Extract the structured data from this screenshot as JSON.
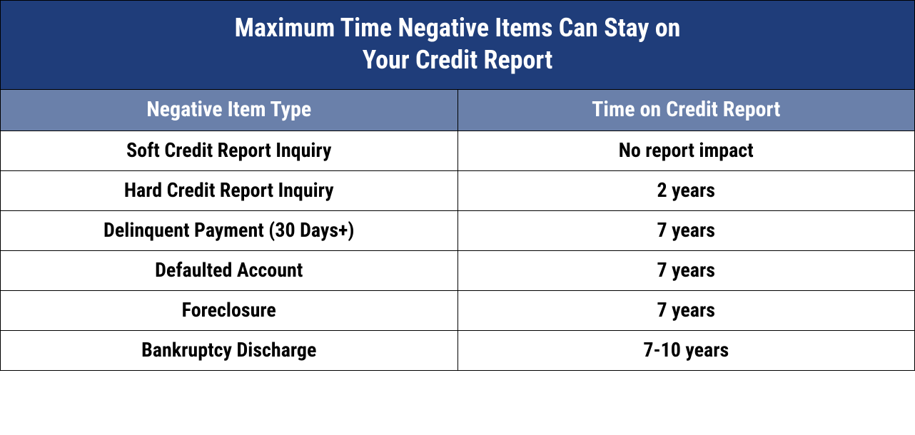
{
  "table": {
    "title_line1": "Maximum Time Negative Items Can Stay on",
    "title_line2": "Your Credit Report",
    "title_bg": "#1f3d7a",
    "title_color": "#ffffff",
    "title_fontsize": 36,
    "header_bg": "#6a80aa",
    "header_color": "#ffffff",
    "header_fontsize": 30,
    "body_bg": "#ffffff",
    "body_color": "#000000",
    "body_fontsize": 28,
    "border_color": "#000000",
    "columns": [
      "Negative Item Type",
      "Time on Credit Report"
    ],
    "rows": [
      [
        "Soft Credit Report Inquiry",
        "No report impact"
      ],
      [
        "Hard Credit Report Inquiry",
        "2 years"
      ],
      [
        "Delinquent Payment (30 Days+)",
        "7 years"
      ],
      [
        "Defaulted Account",
        "7 years"
      ],
      [
        "Foreclosure",
        "7 years"
      ],
      [
        "Bankruptcy Discharge",
        "7-10 years"
      ]
    ]
  }
}
